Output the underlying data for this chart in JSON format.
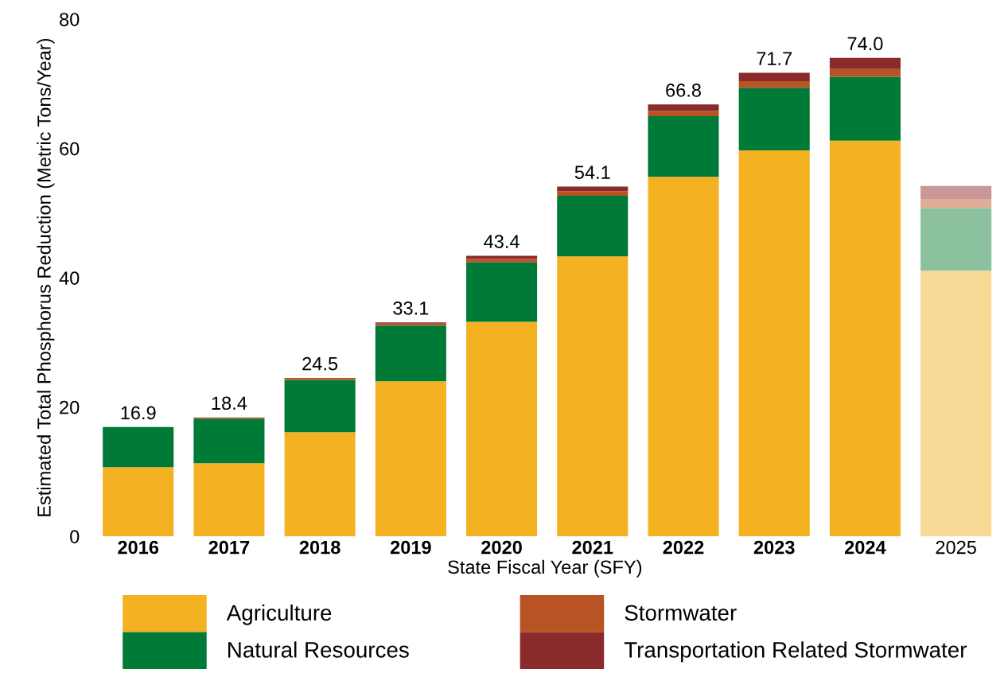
{
  "chart_data": {
    "type": "bar",
    "stacked": true,
    "xlabel": "State Fiscal Year (SFY)",
    "ylabel": "Estimated Total Phosphorus Reduction (Metric Tons/Year)",
    "categories": [
      "2016",
      "2017",
      "2018",
      "2019",
      "2020",
      "2021",
      "2022",
      "2023",
      "2024",
      "2025"
    ],
    "series": [
      {
        "name": "Agriculture",
        "color": "#f4b223",
        "colors": [
          "#f4b223",
          "#f4b223",
          "#f4b223",
          "#f4b223",
          "#f4b223",
          "#f4b223",
          "#f4b223",
          "#f4b223",
          "#f4b223",
          "#f8da96"
        ],
        "values": [
          10.7,
          11.3,
          16.1,
          24.0,
          33.2,
          43.3,
          55.6,
          59.7,
          61.2,
          41.1
        ]
      },
      {
        "name": "Natural Resources",
        "color": "#007a37",
        "colors": [
          "#007a37",
          "#007a37",
          "#007a37",
          "#007a37",
          "#007a37",
          "#007a37",
          "#007a37",
          "#007a37",
          "#007a37",
          "#8bc19f"
        ],
        "values": [
          6.2,
          6.9,
          8.1,
          8.6,
          9.2,
          9.4,
          9.4,
          9.7,
          9.9,
          9.7
        ]
      },
      {
        "name": "Stormwater",
        "color": "#b85424",
        "colors": [
          "#b85424",
          "#b85424",
          "#b85424",
          "#b85424",
          "#b85424",
          "#b85424",
          "#b85424",
          "#b85424",
          "#b85424",
          "#e0ac94"
        ],
        "values": [
          0.0,
          0.2,
          0.3,
          0.3,
          0.5,
          0.7,
          0.8,
          1.0,
          1.2,
          1.4
        ]
      },
      {
        "name": "Transportation Related Stormwater",
        "color": "#8b2a2a",
        "colors": [
          "#8b2a2a",
          "#8b2a2a",
          "#8b2a2a",
          "#8b2a2a",
          "#8b2a2a",
          "#8b2a2a",
          "#8b2a2a",
          "#8b2a2a",
          "#8b2a2a",
          "#c99797"
        ],
        "values": [
          0.0,
          0.0,
          0.0,
          0.2,
          0.5,
          0.7,
          1.0,
          1.3,
          1.7,
          2.0
        ]
      }
    ],
    "totals": [
      "16.9",
      "18.4",
      "24.5",
      "33.1",
      "43.4",
      "54.1",
      "66.8",
      "71.7",
      "74.0",
      null
    ],
    "ylim": [
      0,
      80
    ],
    "yticks": [
      0,
      20,
      40,
      60,
      80
    ],
    "grid": false,
    "legend": "bottom"
  }
}
